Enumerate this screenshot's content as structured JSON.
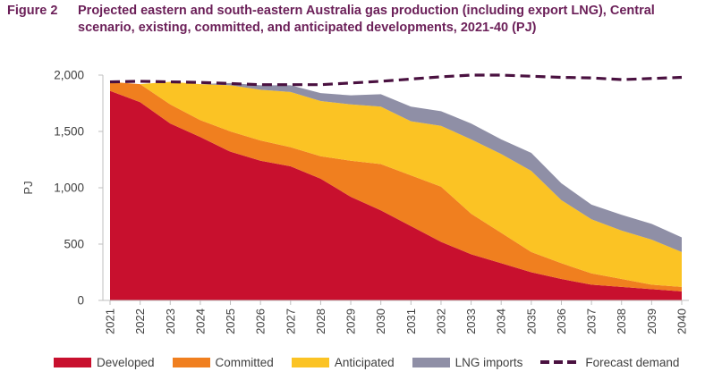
{
  "figure": {
    "label": "Figure 2",
    "title": "Projected eastern and south-eastern Australia gas production (including export LNG), Central scenario, existing, committed, and anticipated developments, 2021-40 (PJ)"
  },
  "colors": {
    "developed": "#c8102e",
    "committed": "#f07f1f",
    "anticipated": "#fbc324",
    "lng": "#8f8fa6",
    "demand": "#4a1140",
    "title": "#6b1f58"
  },
  "chart_data": {
    "type": "area",
    "stacked": true,
    "title": "Projected eastern and south-eastern Australia gas production (including export LNG), Central scenario, existing, committed, and anticipated developments, 2021-40 (PJ)",
    "xlabel": "",
    "ylabel": "PJ",
    "ylim": [
      0,
      2000
    ],
    "yticks": [
      0,
      500,
      1000,
      1500,
      2000
    ],
    "ytick_labels": [
      "0",
      "500",
      "1,000",
      "1,500",
      "2,000"
    ],
    "grid": false,
    "legend_position": "bottom",
    "categories": [
      "2021",
      "2022",
      "2023",
      "2024",
      "2025",
      "2026",
      "2027",
      "2028",
      "2029",
      "2030",
      "2031",
      "2032",
      "2033",
      "2034",
      "2035",
      "2036",
      "2037",
      "2038",
      "2039",
      "2040"
    ],
    "series": [
      {
        "name": "Developed",
        "kind": "area",
        "values": [
          1860,
          1760,
          1570,
          1450,
          1320,
          1240,
          1190,
          1080,
          920,
          800,
          660,
          520,
          410,
          330,
          250,
          190,
          140,
          120,
          100,
          80
        ]
      },
      {
        "name": "Committed",
        "kind": "area",
        "values": [
          80,
          160,
          170,
          150,
          180,
          180,
          170,
          200,
          320,
          410,
          450,
          490,
          360,
          270,
          180,
          140,
          100,
          70,
          40,
          40
        ]
      },
      {
        "name": "Anticipated",
        "kind": "area",
        "values": [
          0,
          0,
          200,
          320,
          410,
          450,
          490,
          490,
          500,
          510,
          480,
          540,
          660,
          700,
          720,
          560,
          480,
          430,
          400,
          310
        ]
      },
      {
        "name": "LNG imports",
        "kind": "area",
        "values": [
          0,
          0,
          0,
          0,
          20,
          40,
          60,
          70,
          80,
          110,
          130,
          130,
          140,
          130,
          160,
          150,
          130,
          140,
          140,
          130
        ]
      },
      {
        "name": "Forecast demand",
        "kind": "line",
        "values": [
          1940,
          1945,
          1940,
          1935,
          1925,
          1915,
          1915,
          1915,
          1930,
          1945,
          1965,
          1985,
          2000,
          2000,
          1990,
          1980,
          1975,
          1960,
          1970,
          1980
        ]
      }
    ]
  }
}
